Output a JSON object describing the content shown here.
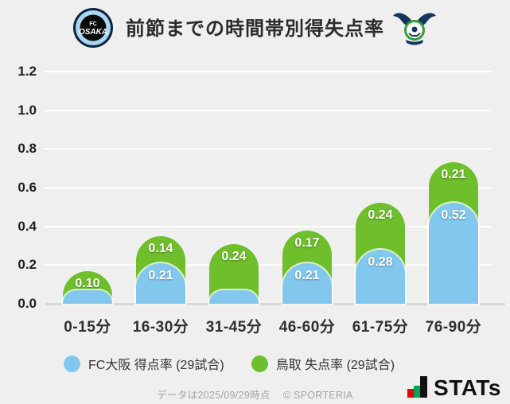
{
  "header": {
    "title": "前節までの時間帯別得失点率",
    "left_logo": "FC大阪エンブレム",
    "right_logo": "ガイナーレ鳥取エンブレム"
  },
  "chart_data": {
    "type": "bar",
    "stacked": true,
    "title": "前節までの時間帯別得失点率",
    "categories": [
      "0-15分",
      "16-30分",
      "31-45分",
      "46-60分",
      "61-75分",
      "76-90分"
    ],
    "series": [
      {
        "name": "FC大阪 得点率 (29試合)",
        "color": "#82c8ee",
        "values": [
          0.07,
          0.21,
          0.07,
          0.21,
          0.28,
          0.52
        ],
        "labels": [
          "",
          "0.21",
          "",
          "0.21",
          "0.28",
          "0.52"
        ]
      },
      {
        "name": "鳥取 失点率 (29試合)",
        "color": "#6fbe2c",
        "values": [
          0.1,
          0.14,
          0.24,
          0.17,
          0.24,
          0.21
        ],
        "labels": [
          "0.10",
          "0.14",
          "0.24",
          "0.17",
          "0.24",
          "0.21"
        ]
      }
    ],
    "y_ticks": [
      0.0,
      0.2,
      0.4,
      0.6,
      0.8,
      1.0,
      1.2
    ],
    "ylim": [
      0,
      1.2
    ],
    "xlabel": "",
    "ylabel": "",
    "grid": true,
    "legend_position": "bottom"
  },
  "footer": {
    "note": "データは2025/09/29時点",
    "copyright": "© SPORTERIA",
    "brand": "STATs"
  },
  "colors": {
    "background": "#f0efef",
    "gridline": "#ffffff",
    "axis_line": "#d8d8d8",
    "fc_osaka_blue": "#82c8ee",
    "tottori_green": "#6fbe2c",
    "text_dark": "#2b2b2b",
    "brand_red": "#e60012",
    "brand_green": "#00a551"
  }
}
